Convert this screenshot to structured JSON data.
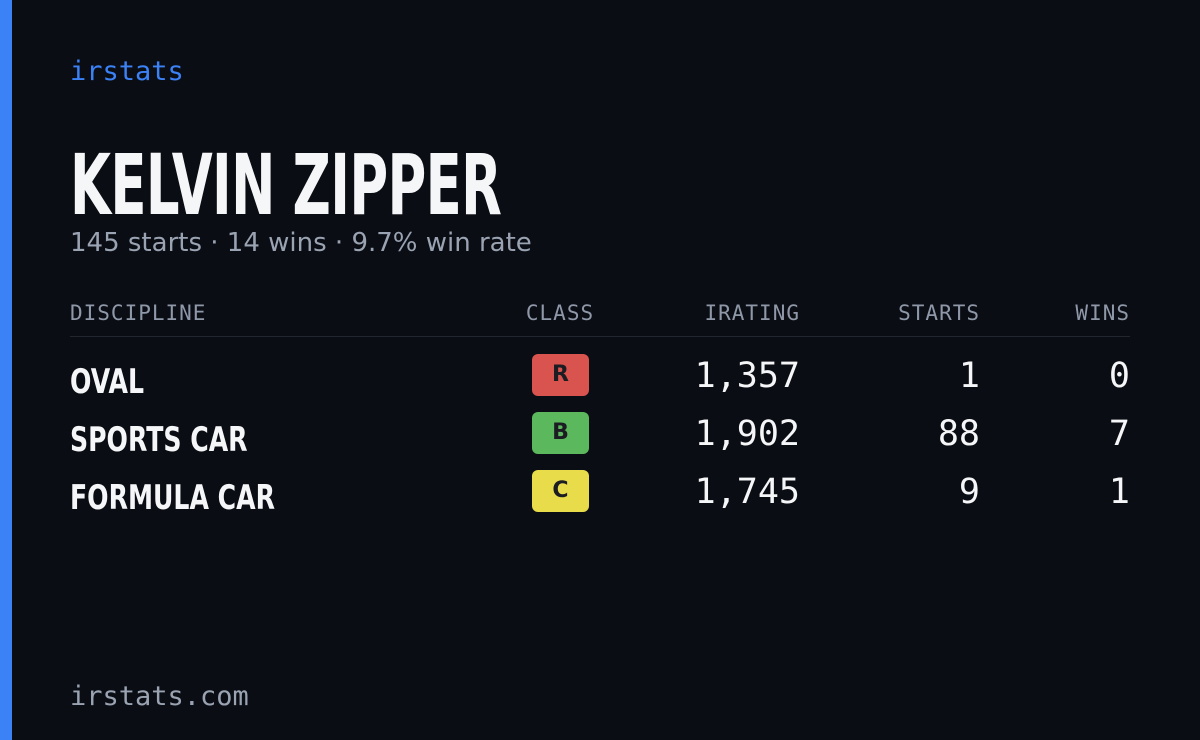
{
  "brand": "irstats",
  "name": "KELVIN ZIPPER",
  "subtitle": "145 starts · 14 wins · 9.7% win rate",
  "table": {
    "headers": [
      "DISCIPLINE",
      "CLASS",
      "IRATING",
      "STARTS",
      "WINS"
    ],
    "rows": [
      {
        "discipline": "OVAL",
        "class": "R",
        "class_color": "#d9534f",
        "irating": "1,357",
        "starts": "1",
        "wins": "0"
      },
      {
        "discipline": "SPORTS CAR",
        "class": "B",
        "class_color": "#5cb85c",
        "irating": "1,902",
        "starts": "88",
        "wins": "7"
      },
      {
        "discipline": "FORMULA CAR",
        "class": "C",
        "class_color": "#e8dc4a",
        "irating": "1,745",
        "starts": "9",
        "wins": "1"
      }
    ]
  },
  "footer": "irstats.com"
}
